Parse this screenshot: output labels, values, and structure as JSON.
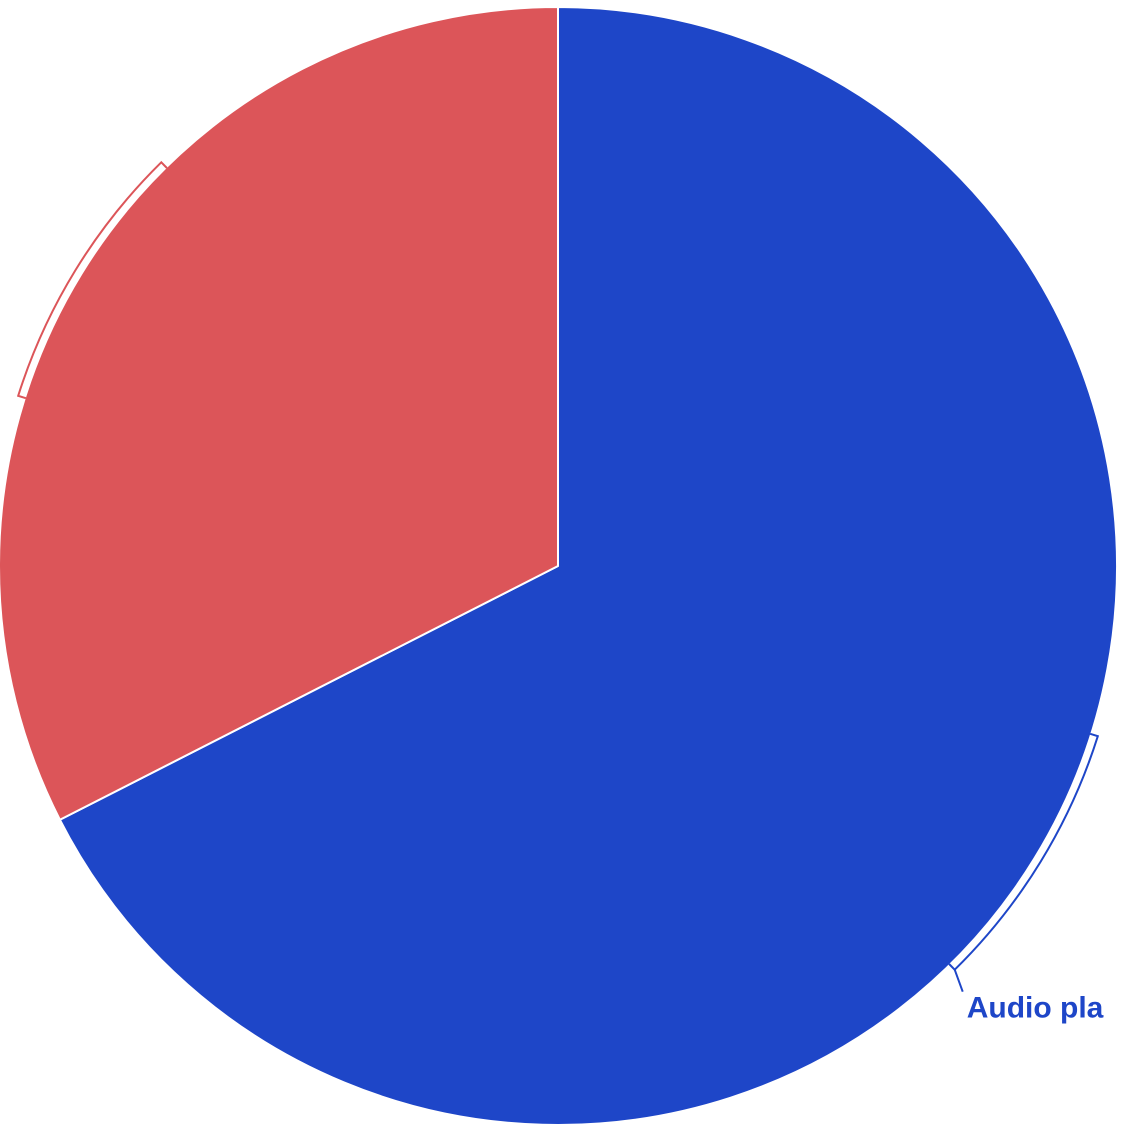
{
  "chart_data": {
    "type": "pie",
    "title": "",
    "slices": [
      {
        "label": "Audio pla",
        "value": 67.5,
        "color": "#1e46c8"
      },
      {
        "label": "",
        "value": 32.5,
        "color": "#dc5559"
      }
    ],
    "start_angle_deg": 0,
    "direction": "clockwise",
    "legend": "none"
  }
}
